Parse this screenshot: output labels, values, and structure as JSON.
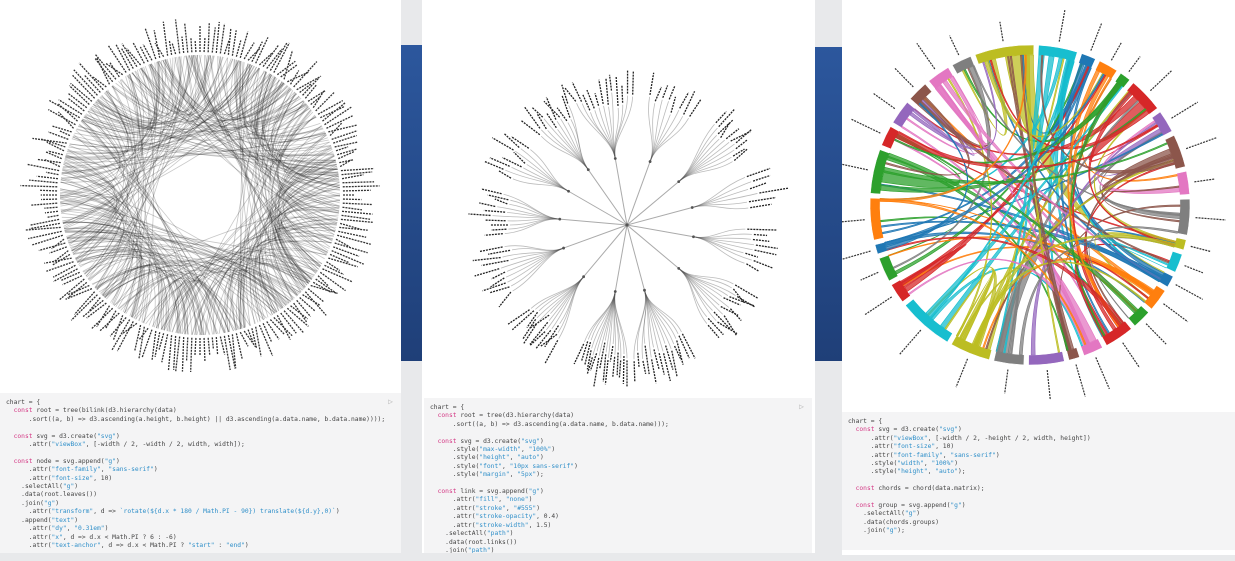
{
  "panels": [
    {
      "chart_kind": "hierarchical-edge-bundling",
      "code": [
        "chart = {",
        "  const root = tree(bilink(d3.hierarchy(data)",
        "      .sort((a, b) => d3.ascending(a.height, b.height) || d3.ascending(a.data.name, b.data.name))));",
        "",
        "  const svg = d3.create(\"svg\")",
        "      .attr(\"viewBox\", [-width / 2, -width / 2, width, width]);",
        "",
        "  const node = svg.append(\"g\")",
        "      .attr(\"font-family\", \"sans-serif\")",
        "      .attr(\"font-size\", 10)",
        "    .selectAll(\"g\")",
        "    .data(root.leaves())",
        "    .join(\"g\")",
        "      .attr(\"transform\", d => `rotate(${d.x * 180 / Math.PI - 90}) translate(${d.y},0)`)",
        "    .append(\"text\")",
        "      .attr(\"dy\", \"0.31em\")",
        "      .attr(\"x\", d => d.x < Math.PI ? 6 : -6)",
        "      .attr(\"text-anchor\", d => d.x < Math.PI ? \"start\" : \"end\")"
      ]
    },
    {
      "chart_kind": "radial-tidy-tree",
      "code": [
        "chart = {",
        "  const root = tree(d3.hierarchy(data)",
        "      .sort((a, b) => d3.ascending(a.data.name, b.data.name)));",
        "",
        "  const svg = d3.create(\"svg\")",
        "      .style(\"max-width\", \"100%\")",
        "      .style(\"height\", \"auto\")",
        "      .style(\"font\", \"10px sans-serif\")",
        "      .style(\"margin\", \"5px\");",
        "",
        "  const link = svg.append(\"g\")",
        "      .attr(\"fill\", \"none\")",
        "      .attr(\"stroke\", \"#555\")",
        "      .attr(\"stroke-opacity\", 0.4)",
        "      .attr(\"stroke-width\", 1.5)",
        "    .selectAll(\"path\")",
        "    .data(root.links())",
        "    .join(\"path\")"
      ]
    },
    {
      "chart_kind": "chord-diagram",
      "group_colors": [
        "#bcbd22",
        "#17becf",
        "#1f77b4",
        "#ff7f0e",
        "#2ca02c",
        "#d62728",
        "#9467bd",
        "#8c564b",
        "#e377c2",
        "#7f7f7f",
        "#bcbd22",
        "#17becf",
        "#1f77b4",
        "#ff7f0e",
        "#2ca02c",
        "#d62728",
        "#e377c2",
        "#8c564b",
        "#9467bd",
        "#7f7f7f",
        "#bcbd22",
        "#17becf",
        "#d62728",
        "#2ca02c",
        "#1f77b4",
        "#ff7f0e",
        "#2ca02c",
        "#d62728",
        "#9467bd",
        "#8c564b",
        "#e377c2",
        "#7f7f7f"
      ],
      "code": [
        "chart = {",
        "  const svg = d3.create(\"svg\")",
        "      .attr(\"viewBox\", [-width / 2, -height / 2, width, height])",
        "      .attr(\"font-size\", 10)",
        "      .attr(\"font-family\", \"sans-serif\")",
        "      .style(\"width\", \"100%\")",
        "      .style(\"height\", \"auto\");",
        "",
        "  const chords = chord(data.matrix);",
        "",
        "  const group = svg.append(\"g\")",
        "    .selectAll(\"g\")",
        "    .data(chords.groups)",
        "    .join(\"g\");"
      ]
    }
  ],
  "run_icon": "play-icon",
  "accent_strip_color": "#2a5298"
}
